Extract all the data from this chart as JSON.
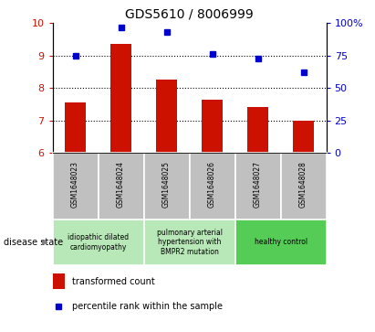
{
  "title": "GDS5610 / 8006999",
  "samples": [
    "GSM1648023",
    "GSM1648024",
    "GSM1648025",
    "GSM1648026",
    "GSM1648027",
    "GSM1648028"
  ],
  "bar_values": [
    7.55,
    9.35,
    8.25,
    7.65,
    7.4,
    6.98
  ],
  "dot_values": [
    75.0,
    97.0,
    93.0,
    76.0,
    72.5,
    62.0
  ],
  "bar_color": "#cc1100",
  "dot_color": "#0000cc",
  "ylim_left": [
    6,
    10
  ],
  "ylim_right": [
    0,
    100
  ],
  "yticks_left": [
    6,
    7,
    8,
    9,
    10
  ],
  "yticks_right": [
    0,
    25,
    50,
    75,
    100
  ],
  "grid_values": [
    7,
    8,
    9
  ],
  "group_info": [
    {
      "start": 0,
      "end": 1,
      "label": "idiopathic dilated\ncardiomyopathy",
      "color": "#b8e8b8"
    },
    {
      "start": 2,
      "end": 3,
      "label": "pulmonary arterial\nhypertension with\nBMPR2 mutation",
      "color": "#b8e8b8"
    },
    {
      "start": 4,
      "end": 5,
      "label": "healthy control",
      "color": "#55cc55"
    }
  ],
  "legend_bar_label": "transformed count",
  "legend_dot_label": "percentile rank within the sample",
  "disease_state_label": "disease state",
  "bar_color_label": "#cc1100",
  "dot_color_label": "#0000cc",
  "left_tick_color": "#cc1100",
  "right_tick_color": "#0000cc",
  "sample_box_color": "#c0c0c0",
  "plot_bg": "#ffffff"
}
